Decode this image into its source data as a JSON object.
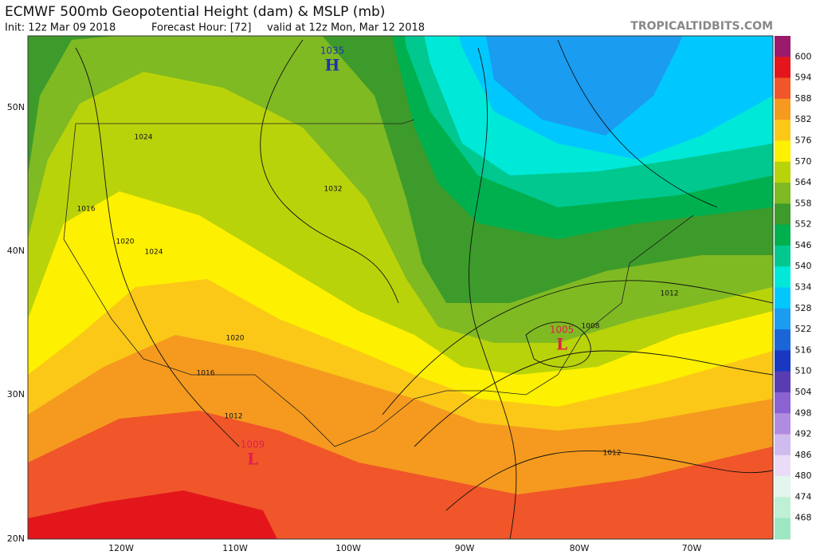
{
  "header": {
    "title": "ECMWF 500mb Geopotential Height (dam) & MSLP (mb)",
    "init": "Init: 12z Mar 09 2018",
    "forecast_hour": "Forecast Hour: [72]",
    "valid": "valid at 12z Mon, Mar 12 2018",
    "source": "TROPICALTIDBITS.COM"
  },
  "colorbar": {
    "colors": [
      "#9c1a6c",
      "#e3161c",
      "#f0562a",
      "#f59a1e",
      "#fbc818",
      "#fdf000",
      "#b9d30a",
      "#7fba23",
      "#3d9b2b",
      "#00b04e",
      "#00c88e",
      "#00e8d8",
      "#00c8ff",
      "#1a9cf0",
      "#1a66d6",
      "#1838c2",
      "#5a3cb2",
      "#8a62d2",
      "#b08ce0",
      "#d0bbee",
      "#eadcf6",
      "#e2f6ee",
      "#bdf0d4",
      "#9ce6c2"
    ],
    "labels": [
      "600",
      "594",
      "588",
      "582",
      "576",
      "570",
      "564",
      "558",
      "552",
      "546",
      "540",
      "534",
      "528",
      "522",
      "516",
      "510",
      "504",
      "498",
      "492",
      "486",
      "480",
      "474",
      "468"
    ]
  },
  "axes": {
    "latitude": [
      "50N",
      "40N",
      "30N",
      "20N"
    ],
    "longitude": [
      "120W",
      "110W",
      "100W",
      "90W",
      "80W",
      "70W"
    ]
  },
  "pressure_centers": [
    {
      "value": "1035",
      "letter": "H",
      "color": "#2233aa"
    },
    {
      "value": "1005",
      "letter": "L",
      "color": "#e0204a"
    },
    {
      "value": "1009",
      "letter": "L",
      "color": "#e0204a"
    }
  ],
  "isobar_labels": [
    "1024",
    "1016",
    "1020",
    "1024",
    "1032",
    "1020",
    "1016",
    "1012",
    "1012",
    "1008",
    "1012"
  ]
}
